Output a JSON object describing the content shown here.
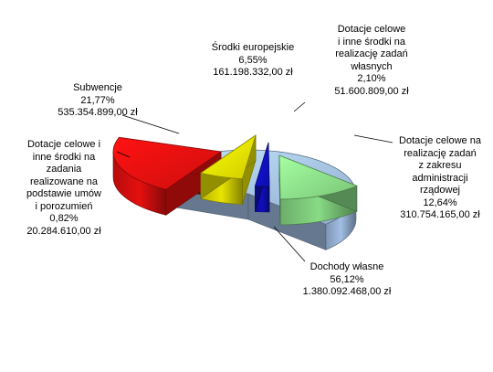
{
  "chart_data": {
    "type": "pie",
    "style": "3d-exploded",
    "slices": [
      {
        "key": "dochody",
        "name": "Dochody własne",
        "percent_label": "56,12%",
        "value_label": "1.380.092.468,00 zł",
        "value": 1380092468.0,
        "percent": 56.12,
        "color": "#a9c8f0"
      },
      {
        "key": "zlecone",
        "name": "Dotacje celowe na realizację zadań z zakresu administracji rządowej",
        "percent_label": "12,64%",
        "value_label": "310.754.165,00 zł",
        "value": 310754165.0,
        "percent": 12.64,
        "color": "#8fe68c"
      },
      {
        "key": "wlasne",
        "name": "Dotacje celowe i inne środki na realizację zadań własnych",
        "percent_label": "2,10%",
        "value_label": "51.600.809,00 zł",
        "value": 51600809.0,
        "percent": 2.1,
        "color": "#1010c8"
      },
      {
        "key": "europejskie",
        "name": "Środki europejskie",
        "percent_label": "6,55%",
        "value_label": "161.198.332,00 zł",
        "value": 161198332.0,
        "percent": 6.55,
        "color": "#f4f000"
      },
      {
        "key": "subwencje",
        "name": "Subwencje",
        "percent_label": "21,77%",
        "value_label": "535.354.899,00 zł",
        "value": 535354899.0,
        "percent": 21.77,
        "color": "#f21010"
      },
      {
        "key": "porozumienia",
        "name": "Dotacje celowe i inne środki na zadania realizowane na podstawie umów i porozumień",
        "percent_label": "0,82%",
        "value_label": "20.284.610,00 zł",
        "value": 20284610.0,
        "percent": 0.82,
        "color": "#7a2e0a"
      }
    ],
    "labels": {
      "dochody": [
        "Dochody własne",
        "56,12%",
        "1.380.092.468,00 zł"
      ],
      "zlecone": [
        "Dotacje celowe na",
        "realizację zadań",
        "z zakresu",
        "administracji",
        "rządowej",
        "12,64%",
        "310.754.165,00 zł"
      ],
      "wlasne": [
        "Dotacje celowe",
        "i inne środki na",
        "realizację zadań",
        "własnych",
        "2,10%",
        "51.600.809,00 zł"
      ],
      "europejskie": [
        "Środki europejskie",
        "6,55%",
        "161.198.332,00 zł"
      ],
      "subwencje": [
        "Subwencje",
        "21,77%",
        "535.354.899,00 zł"
      ],
      "porozumienia": [
        "Dotacje celowe i",
        "inne środki na",
        "zadania",
        "realizowane na",
        "podstawie umów",
        "i porozumień",
        "0,82%",
        "20.284.610,00 zł"
      ]
    },
    "legend": "none"
  }
}
